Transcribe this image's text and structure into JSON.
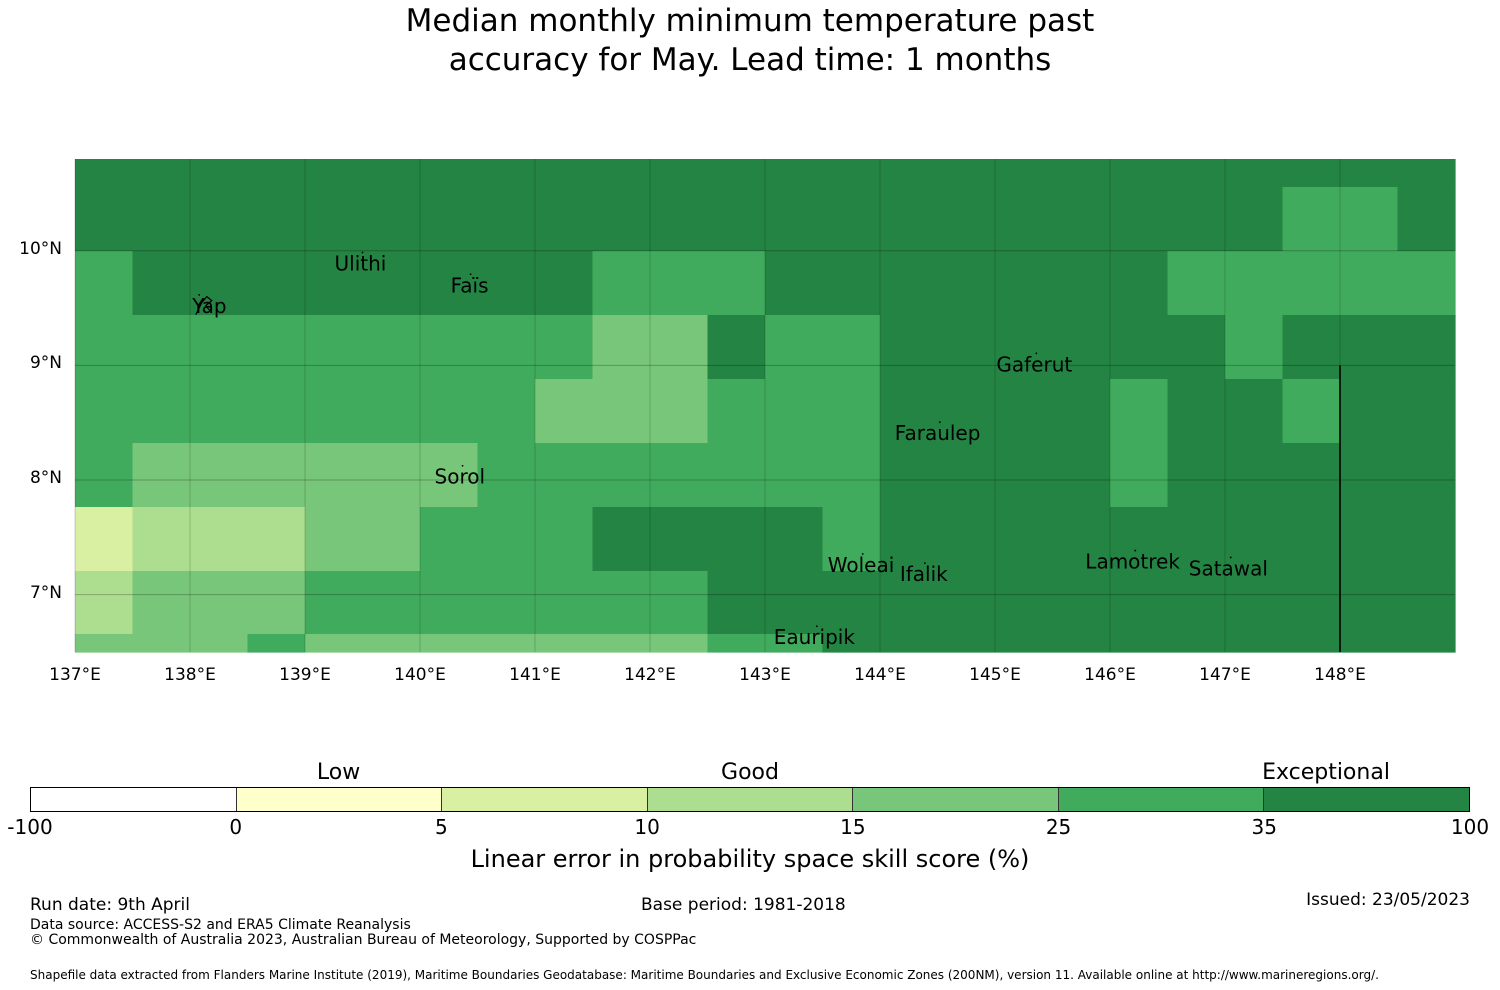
{
  "title": {
    "line1": "Median monthly minimum temperature past",
    "line2": "accuracy for May. Lead time: 1 months"
  },
  "map": {
    "lon_range": [
      137.0,
      149.0
    ],
    "lat_range": [
      6.5,
      10.8
    ],
    "y_ticks": [
      {
        "lat": 10,
        "label": "10°N"
      },
      {
        "lat": 9,
        "label": "9°N"
      },
      {
        "lat": 8,
        "label": "8°N"
      },
      {
        "lat": 7,
        "label": "7°N"
      }
    ],
    "x_ticks": [
      {
        "lon": 137,
        "label": "137°E"
      },
      {
        "lon": 138,
        "label": "138°E"
      },
      {
        "lon": 139,
        "label": "139°E"
      },
      {
        "lon": 140,
        "label": "140°E"
      },
      {
        "lon": 141,
        "label": "141°E"
      },
      {
        "lon": 142,
        "label": "142°E"
      },
      {
        "lon": 143,
        "label": "143°E"
      },
      {
        "lon": 144,
        "label": "144°E"
      },
      {
        "lon": 145,
        "label": "145°E"
      },
      {
        "lon": 146,
        "label": "146°E"
      },
      {
        "lon": 147,
        "label": "147°E"
      },
      {
        "lon": 148,
        "label": "148°E"
      }
    ],
    "colors": [
      "#ffffff",
      "#ffffcc",
      "#d9f0a3",
      "#addd8e",
      "#78c679",
      "#41ab5d",
      "#238443"
    ],
    "grid_rows": [
      [
        6,
        6,
        6,
        6,
        6,
        6,
        6,
        6,
        6,
        6,
        6,
        6,
        6,
        6,
        6,
        6,
        6,
        6,
        6,
        6,
        6,
        6,
        6,
        6
      ],
      [
        6,
        6,
        6,
        6,
        6,
        6,
        6,
        6,
        6,
        6,
        6,
        6,
        6,
        6,
        6,
        6,
        6,
        6,
        6,
        6,
        6,
        5,
        5,
        6
      ],
      [
        5,
        6,
        6,
        6,
        6,
        6,
        6,
        6,
        6,
        5,
        5,
        5,
        6,
        6,
        6,
        6,
        6,
        6,
        6,
        5,
        5,
        5,
        5,
        5
      ],
      [
        5,
        5,
        5,
        5,
        5,
        5,
        5,
        5,
        5,
        4,
        4,
        6,
        5,
        5,
        6,
        6,
        6,
        6,
        6,
        6,
        5,
        6,
        6,
        6
      ],
      [
        5,
        5,
        5,
        5,
        5,
        5,
        5,
        5,
        4,
        4,
        4,
        5,
        5,
        5,
        6,
        6,
        6,
        6,
        5,
        6,
        6,
        5,
        6,
        6
      ],
      [
        5,
        4,
        4,
        4,
        4,
        4,
        4,
        5,
        5,
        5,
        5,
        5,
        5,
        5,
        6,
        6,
        6,
        6,
        5,
        6,
        6,
        6,
        6,
        6
      ],
      [
        2,
        3,
        3,
        3,
        4,
        4,
        5,
        5,
        5,
        6,
        6,
        6,
        6,
        5,
        6,
        6,
        6,
        6,
        6,
        6,
        6,
        6,
        6,
        6
      ],
      [
        3,
        4,
        4,
        4,
        5,
        5,
        5,
        5,
        5,
        5,
        5,
        6,
        6,
        6,
        6,
        6,
        6,
        6,
        6,
        6,
        6,
        6,
        6,
        6
      ],
      [
        4,
        4,
        4,
        5,
        4,
        4,
        4,
        4,
        4,
        4,
        4,
        5,
        5,
        6,
        6,
        6,
        6,
        6,
        6,
        6,
        6,
        6,
        6,
        6
      ]
    ],
    "islands": [
      {
        "name": "Yap",
        "lon": 138.08,
        "lat": 9.51
      },
      {
        "name": "Ulithi",
        "lon": 139.5,
        "lat": 9.88
      },
      {
        "name": "Faïs",
        "lon": 140.44,
        "lat": 9.69
      },
      {
        "name": "Gaferut",
        "lon": 145.36,
        "lat": 9.0
      },
      {
        "name": "Faraulep",
        "lon": 144.52,
        "lat": 8.4
      },
      {
        "name": "Sorol",
        "lon": 140.37,
        "lat": 8.02
      },
      {
        "name": "Woleai",
        "lon": 143.85,
        "lat": 7.25
      },
      {
        "name": "Ifalik",
        "lon": 144.39,
        "lat": 7.17
      },
      {
        "name": "Lamotrek",
        "lon": 146.22,
        "lat": 7.28
      },
      {
        "name": "Satawal",
        "lon": 147.05,
        "lat": 7.22
      },
      {
        "name": "Eauripik",
        "lon": 143.45,
        "lat": 6.62
      }
    ],
    "boundary_line": {
      "lon": 148.0,
      "lat_from": 6.5,
      "lat_to": 9.0
    }
  },
  "colorbar": {
    "categories": [
      {
        "label": "Low",
        "value": 1.5
      },
      {
        "label": "Good",
        "value": 3.5
      },
      {
        "label": "Exceptional",
        "value": 6.3
      }
    ],
    "ticks": [
      "-100",
      "0",
      "5",
      "10",
      "15",
      "25",
      "35",
      "100"
    ],
    "colors": [
      "#ffffff",
      "#ffffcc",
      "#d9f0a3",
      "#addd8e",
      "#78c679",
      "#41ab5d",
      "#238443"
    ],
    "title": "Linear error in probability space skill score (%)"
  },
  "footer": {
    "run_date": "Run date: 9th April",
    "base_period": "Base period: 1981-2018",
    "issued": "Issued: 23/05/2023",
    "data_source": "Data source: ACCESS-S2 and ERA5 Climate Reanalysis",
    "copyright": "© Commonwealth of Australia 2023, Australian Bureau of Meteorology, Supported by COSPPac",
    "shapefile": "Shapefile data extracted from Flanders Marine Institute (2019), Maritime Boundaries Geodatabase: Maritime Boundaries and Exclusive Economic Zones (200NM), version 11. Available online at http://www.marineregions.org/."
  }
}
